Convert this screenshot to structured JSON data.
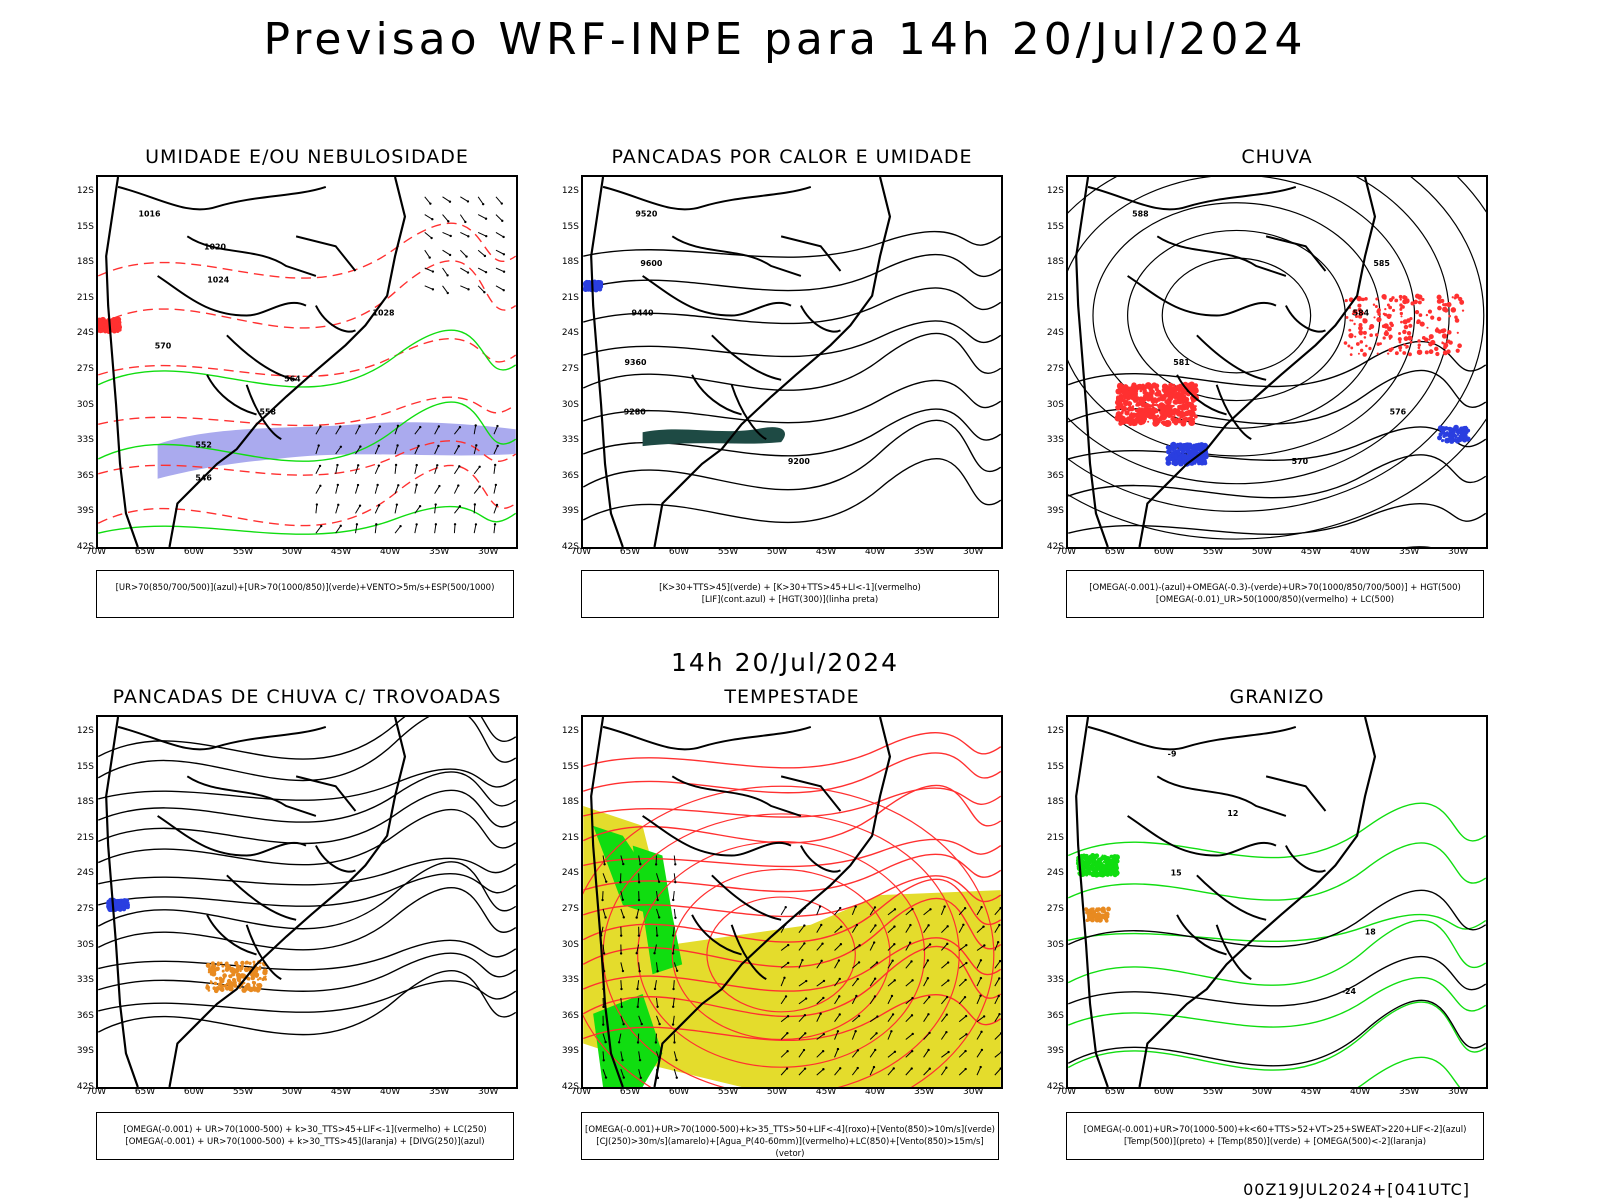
{
  "title": "Previsao WRF-INPE  para 14h 20/Jul/2024",
  "mid_time": "14h 20/Jul/2024",
  "footer": "00Z19JUL2024+[041UTC]",
  "lat_labels": [
    "12S",
    "15S",
    "18S",
    "21S",
    "24S",
    "27S",
    "30S",
    "33S",
    "36S",
    "39S",
    "42S"
  ],
  "lon_labels": [
    "70W",
    "65W",
    "60W",
    "55W",
    "50W",
    "45W",
    "40W",
    "35W",
    "30W"
  ],
  "colors": {
    "red": "#ff3030",
    "green": "#10dd10",
    "blue": "#2a3ee0",
    "lavender": "#aaaaee",
    "yellow": "#e4dc2c",
    "orange": "#e88a20",
    "teal": "#1e4a44"
  },
  "panels": [
    {
      "title": "UMIDADE E/OU NEBULOSIDADE",
      "legend": [
        "[UR>70(850/700/500)](azul)+[UR>70(1000/850)](verde)+VENTO>5m/s+ESP(500/1000)"
      ],
      "contour_labels": [
        "1016",
        "1020",
        "1024",
        "1028",
        "570",
        "564",
        "558",
        "552",
        "546"
      ]
    },
    {
      "title": "PANCADAS POR CALOR E UMIDADE",
      "legend": [
        "[K>30+TTS>45](verde) + [K>30+TTS>45+LI<-1](vermelho)",
        "[LIF](cont.azul) + [HGT(300)](linha preta)"
      ],
      "contour_labels": [
        "9520",
        "9600",
        "9440",
        "9360",
        "9280",
        "9200"
      ]
    },
    {
      "title": "CHUVA",
      "legend": [
        "[OMEGA(-0.001)-(azul)+OMEGA(-0.3)-(verde)+UR>70(1000/850/700/500)] + HGT(500)",
        "[OMEGA(-0.01)_UR>50(1000/850)(vermelho) + LC(500)"
      ],
      "contour_labels": [
        "588",
        "585",
        "584",
        "581",
        "576",
        "570"
      ]
    },
    {
      "title": "PANCADAS DE CHUVA C/ TROVOADAS",
      "legend": [
        "[OMEGA(-0.001) + UR>70(1000-500) + k>30_TTS>45+LIF<-1](vermelho) + LC(250)",
        "[OMEGA(-0.001) + UR>70(1000-500) + k>30_TTS>45](laranja) + [DIVG(250)](azul)"
      ],
      "contour_labels": []
    },
    {
      "title": "TEMPESTADE",
      "legend": [
        "[OMEGA(-0.001)+UR>70(1000-500)+k>35_TTS>50+LIF<-4](roxo)+[Vento(850)>10m/s](verde)",
        "[CJ(250)>30m/s](amarelo)+[Agua_P(40-60mm)](vermelho)+LC(850)+[Vento(850)>15m/s](vetor)"
      ],
      "contour_labels": []
    },
    {
      "title": "GRANIZO",
      "legend": [
        "[OMEGA(-0.001)+UR>70(1000-500)+k<60+TTS>52+VT>25+SWEAT>220+LIF<-2](azul)",
        "[Temp(500)](preto) + [Temp(850)](verde) + [OMEGA(500)<-2](laranja)"
      ],
      "contour_labels": [
        "-9",
        "12",
        "15",
        "18",
        "-24"
      ]
    }
  ]
}
